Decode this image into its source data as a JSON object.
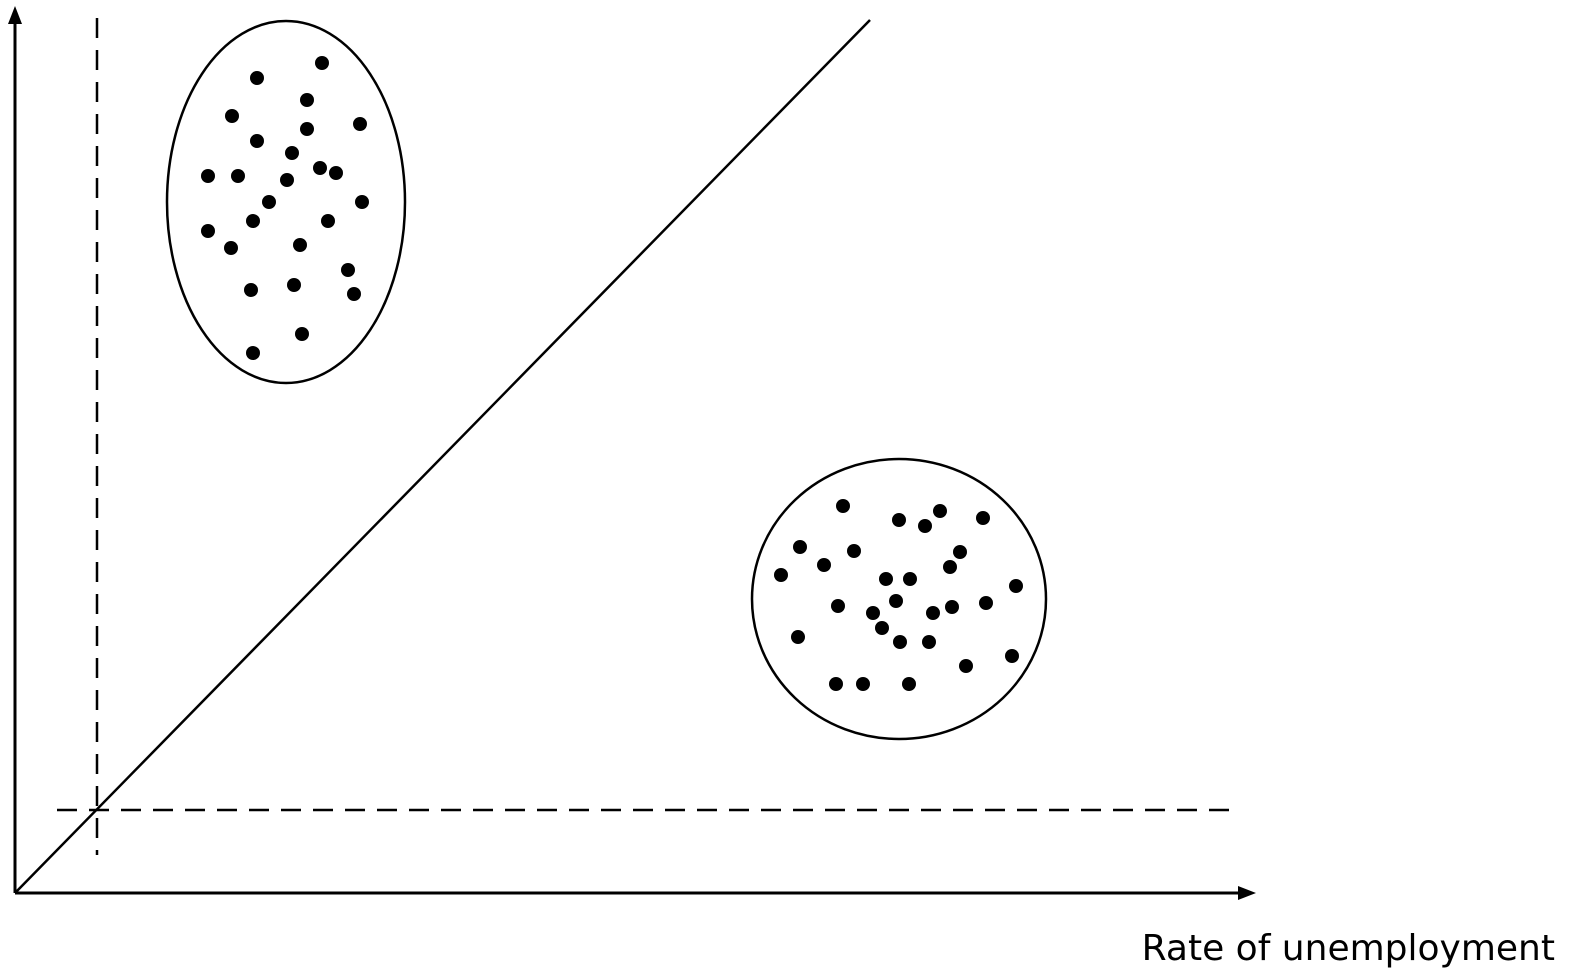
{
  "diagram": {
    "x_axis_label": "Rate of unemployment",
    "y_axis_label": "",
    "elements": {
      "axes": "x and y axes with arrowheads",
      "diagonal_line": "solid line from origin",
      "dashed_lines": "one vertical and one horizontal dashed reference line",
      "clusters": [
        {
          "shape": "ellipse",
          "dot_count": 30
        },
        {
          "shape": "circle",
          "dot_count": 31
        }
      ]
    },
    "colors": {
      "ink": "#000000",
      "background": "#ffffff"
    }
  }
}
